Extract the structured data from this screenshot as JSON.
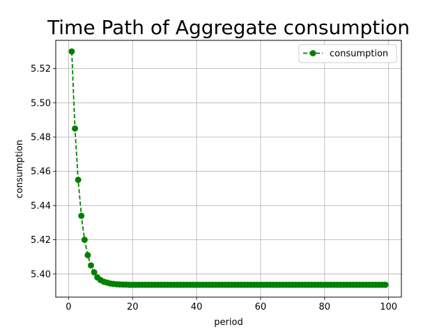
{
  "chart_data": {
    "type": "line",
    "title": "Time Path of Aggregate consumption",
    "xlabel": "period",
    "ylabel": "consumption",
    "xlim": [
      -4,
      104
    ],
    "ylim": [
      5.3865,
      5.5365
    ],
    "xticks": [
      0,
      20,
      40,
      60,
      80,
      100
    ],
    "yticks": [
      5.4,
      5.42,
      5.44,
      5.46,
      5.48,
      5.5,
      5.52
    ],
    "grid": true,
    "legend_position": "upper-right",
    "series": [
      {
        "name": "consumption",
        "color": "#008000",
        "linestyle": "dashed",
        "marker": "circle",
        "x": [
          1,
          2,
          3,
          4,
          5,
          6,
          7,
          8,
          9,
          10,
          11,
          12,
          13,
          14,
          15,
          16,
          17,
          18,
          19,
          20,
          21,
          22,
          23,
          24,
          25,
          26,
          27,
          28,
          29,
          30,
          31,
          32,
          33,
          34,
          35,
          36,
          37,
          38,
          39,
          40,
          41,
          42,
          43,
          44,
          45,
          46,
          47,
          48,
          49,
          50,
          51,
          52,
          53,
          54,
          55,
          56,
          57,
          58,
          59,
          60,
          61,
          62,
          63,
          64,
          65,
          66,
          67,
          68,
          69,
          70,
          71,
          72,
          73,
          74,
          75,
          76,
          77,
          78,
          79,
          80,
          81,
          82,
          83,
          84,
          85,
          86,
          87,
          88,
          89,
          90,
          91,
          92,
          93,
          94,
          95,
          96,
          97,
          98,
          99
        ],
        "y": [
          5.53,
          5.485,
          5.455,
          5.434,
          5.42,
          5.411,
          5.405,
          5.401,
          5.398,
          5.3965,
          5.3955,
          5.395,
          5.3945,
          5.3942,
          5.394,
          5.3939,
          5.3938,
          5.3938,
          5.3937,
          5.3937,
          5.3937,
          5.3937,
          5.3937,
          5.3937,
          5.3937,
          5.3937,
          5.3937,
          5.3937,
          5.3937,
          5.3937,
          5.3937,
          5.3937,
          5.3937,
          5.3937,
          5.3937,
          5.3937,
          5.3937,
          5.3937,
          5.3937,
          5.3937,
          5.3937,
          5.3937,
          5.3937,
          5.3937,
          5.3937,
          5.3937,
          5.3937,
          5.3937,
          5.3937,
          5.3937,
          5.3937,
          5.3937,
          5.3937,
          5.3937,
          5.3937,
          5.3937,
          5.3937,
          5.3937,
          5.3937,
          5.3937,
          5.3937,
          5.3937,
          5.3937,
          5.3937,
          5.3937,
          5.3937,
          5.3937,
          5.3937,
          5.3937,
          5.3937,
          5.3937,
          5.3937,
          5.3937,
          5.3937,
          5.3937,
          5.3937,
          5.3937,
          5.3937,
          5.3937,
          5.3937,
          5.3937,
          5.3937,
          5.3937,
          5.3937,
          5.3937,
          5.3937,
          5.3937,
          5.3937,
          5.3937,
          5.3937,
          5.3937,
          5.3937,
          5.3937,
          5.3937,
          5.3937,
          5.3937,
          5.3937,
          5.3937,
          5.3937
        ]
      }
    ]
  }
}
